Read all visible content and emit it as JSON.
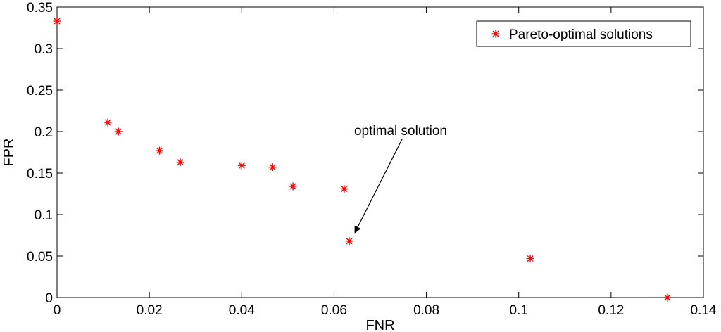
{
  "chart_data": {
    "type": "scatter",
    "title": "",
    "xlabel": "FNR",
    "ylabel": "FPR",
    "xlim": [
      0,
      0.14
    ],
    "ylim": [
      0,
      0.35
    ],
    "xticks": [
      0,
      0.02,
      0.04,
      0.06,
      0.08,
      0.1,
      0.12,
      0.14
    ],
    "xtick_labels": [
      "0",
      "0.02",
      "0.04",
      "0.06",
      "0.08",
      "0.1",
      "0.12",
      "0.14"
    ],
    "yticks": [
      0,
      0.05,
      0.1,
      0.15,
      0.2,
      0.25,
      0.3,
      0.35
    ],
    "ytick_labels": [
      "0",
      "0.05",
      "0.1",
      "0.15",
      "0.2",
      "0.25",
      "0.3",
      "0.35"
    ],
    "grid": false,
    "legend_position": "top-right",
    "series": [
      {
        "name": "Pareto-optimal solutions",
        "color": "#ff0000",
        "marker": "asterisk",
        "points": [
          {
            "x": 0.0,
            "y": 0.333
          },
          {
            "x": 0.011,
            "y": 0.211
          },
          {
            "x": 0.0133,
            "y": 0.2
          },
          {
            "x": 0.0222,
            "y": 0.177
          },
          {
            "x": 0.0267,
            "y": 0.163
          },
          {
            "x": 0.04,
            "y": 0.159
          },
          {
            "x": 0.0467,
            "y": 0.157
          },
          {
            "x": 0.0511,
            "y": 0.134
          },
          {
            "x": 0.0622,
            "y": 0.131
          },
          {
            "x": 0.0633,
            "y": 0.068
          },
          {
            "x": 0.1025,
            "y": 0.047
          },
          {
            "x": 0.1322,
            "y": 0.0
          }
        ]
      }
    ],
    "annotations": [
      {
        "text": "optimal solution",
        "arrow_to": {
          "x": 0.0633,
          "y": 0.068
        }
      }
    ]
  }
}
